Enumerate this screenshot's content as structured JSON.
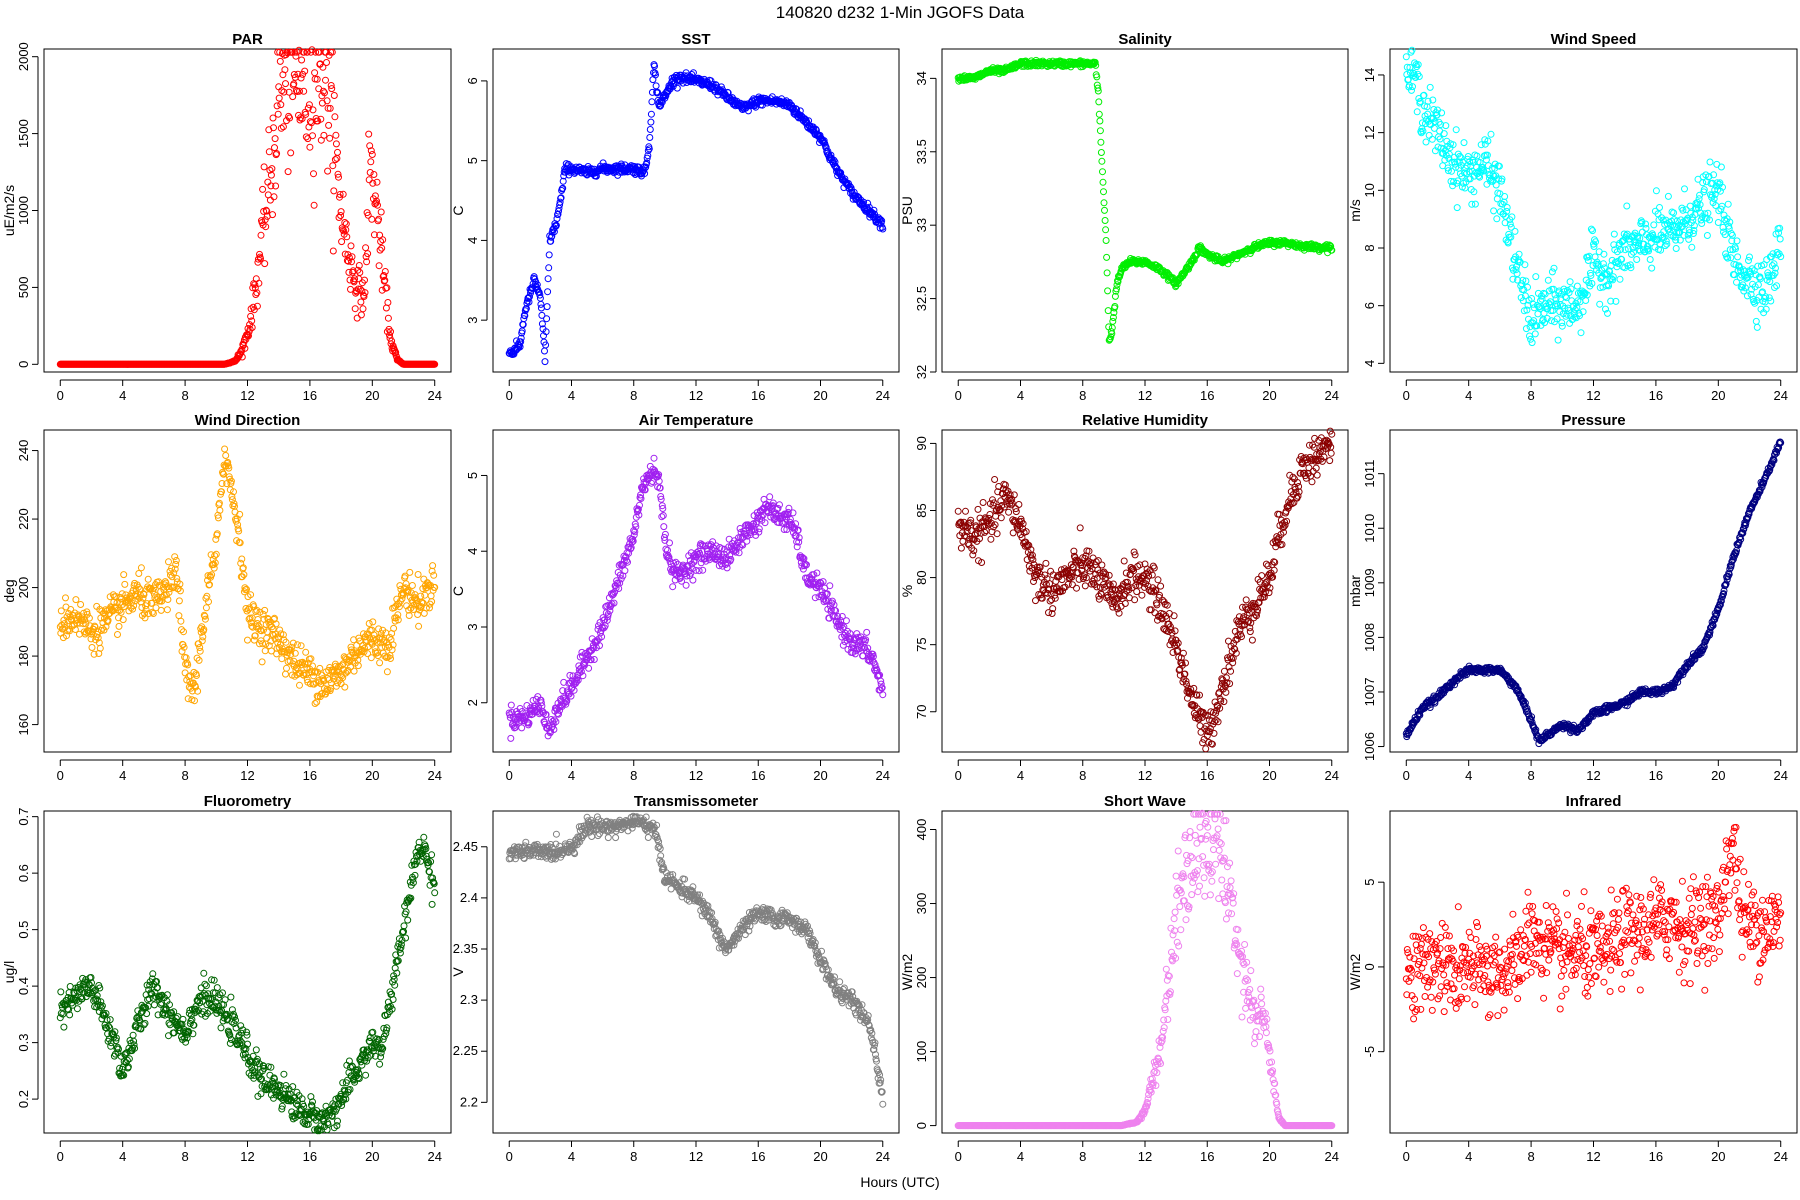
{
  "figure": {
    "title": "140820   d232   1-Min  JGOFS Data",
    "xlabel": "Hours (UTC)"
  },
  "chart_data": [
    {
      "type": "scatter",
      "title": "PAR",
      "ylabel": "uE/m2/s",
      "color": "#ff0000",
      "xlim": [
        0,
        24
      ],
      "ylim": [
        -50,
        2050
      ],
      "xticks": [
        0,
        4,
        8,
        12,
        16,
        20,
        24
      ],
      "yticks": [
        0,
        500,
        1000,
        1500,
        2000
      ],
      "ytick_rotate": true,
      "series": [
        {
          "x": [
            0,
            10.5,
            11.2,
            11.6,
            12.0,
            12.3,
            12.6,
            12.9,
            13.2,
            13.5,
            13.8,
            14.0,
            14.5,
            15.0,
            15.5,
            16.0,
            16.5,
            17.0,
            17.5,
            18.0,
            18.5,
            19.0,
            19.5,
            19.8,
            20.0,
            20.3,
            20.6,
            20.9,
            21.2,
            21.6,
            22.0,
            24
          ],
          "y": [
            0,
            0,
            20,
            80,
            200,
            350,
            550,
            800,
            1000,
            1250,
            1500,
            1780,
            1800,
            1820,
            1840,
            1800,
            1850,
            1900,
            1500,
            1000,
            700,
            500,
            450,
            1250,
            1200,
            1000,
            700,
            400,
            150,
            30,
            0,
            0
          ],
          "noise": 0.15
        }
      ]
    },
    {
      "type": "scatter",
      "title": "SST",
      "ylabel": "C",
      "color": "#0000ff",
      "xlim": [
        0,
        24
      ],
      "ylim": [
        2.35,
        6.4
      ],
      "xticks": [
        0,
        4,
        8,
        12,
        16,
        20,
        24
      ],
      "yticks": [
        3,
        4,
        5,
        6
      ],
      "ytick_rotate": true,
      "series": [
        {
          "x": [
            0,
            0.3,
            0.7,
            1.0,
            1.3,
            1.6,
            2.0,
            2.3,
            2.6,
            3.0,
            3.3,
            3.6,
            4.0,
            5.0,
            6.0,
            7.0,
            8.0,
            8.7,
            9.0,
            9.3,
            9.6,
            10.0,
            10.5,
            11.0,
            12.0,
            13.0,
            14.0,
            15.0,
            16.0,
            17.0,
            18.0,
            19.0,
            20.0,
            21.0,
            22.0,
            23.0,
            24.0
          ],
          "y": [
            2.6,
            2.6,
            2.7,
            3.1,
            3.3,
            3.5,
            3.3,
            2.5,
            4.0,
            4.2,
            4.5,
            4.9,
            4.9,
            4.85,
            4.9,
            4.9,
            4.9,
            4.85,
            5.2,
            6.2,
            5.7,
            5.8,
            6.0,
            6.05,
            6.0,
            5.95,
            5.8,
            5.65,
            5.75,
            5.75,
            5.7,
            5.5,
            5.3,
            4.9,
            4.6,
            4.4,
            4.2
          ],
          "noise": 0.03
        }
      ]
    },
    {
      "type": "scatter",
      "title": "Salinity",
      "ylabel": "PSU",
      "color": "#00ee00",
      "xlim": [
        0,
        24
      ],
      "ylim": [
        32.0,
        34.2
      ],
      "xticks": [
        0,
        4,
        8,
        12,
        16,
        20,
        24
      ],
      "yticks": [
        32.0,
        32.5,
        33.0,
        33.5,
        34.0
      ],
      "ytick_rotate": true,
      "series": [
        {
          "x": [
            0,
            1.0,
            2.0,
            3.0,
            4.0,
            5.0,
            6.0,
            7.0,
            8.0,
            8.8,
            9.0,
            9.3,
            9.5,
            9.7,
            9.9,
            10.2,
            10.5,
            11.0,
            12.0,
            13.0,
            14.0,
            15.0,
            15.5,
            16.0,
            17.0,
            18.0,
            19.0,
            20.0,
            21.0,
            22.0,
            23.0,
            24.0
          ],
          "y": [
            34.0,
            34.0,
            34.05,
            34.05,
            34.1,
            34.1,
            34.1,
            34.1,
            34.1,
            34.1,
            33.9,
            33.3,
            32.9,
            32.2,
            32.3,
            32.6,
            32.7,
            32.75,
            32.75,
            32.7,
            32.6,
            32.75,
            32.85,
            32.8,
            32.75,
            32.8,
            32.85,
            32.88,
            32.88,
            32.86,
            32.85,
            32.85
          ],
          "noise": 0.01
        }
      ]
    },
    {
      "type": "scatter",
      "title": "Wind Speed",
      "ylabel": "m/s",
      "color": "#00ffff",
      "xlim": [
        0,
        24
      ],
      "ylim": [
        3.7,
        14.9
      ],
      "xticks": [
        0,
        4,
        8,
        12,
        16,
        20,
        24
      ],
      "yticks": [
        4,
        6,
        8,
        10,
        12,
        14
      ],
      "ytick_rotate": true,
      "series": [
        {
          "x": [
            0,
            0.5,
            1.0,
            2.0,
            3.0,
            4.0,
            5.0,
            6.0,
            7.0,
            8.0,
            9.0,
            10.0,
            11.0,
            12.0,
            13.0,
            14.0,
            15.0,
            16.0,
            17.0,
            18.0,
            19.0,
            20.0,
            21.0,
            22.0,
            23.0,
            24.0
          ],
          "y": [
            14,
            14,
            13,
            12,
            11,
            10.5,
            11,
            10,
            7.5,
            5.5,
            6,
            6,
            6,
            7.5,
            7,
            8,
            8,
            8.5,
            8.5,
            9,
            9.5,
            10,
            7.5,
            7,
            6.5,
            8
          ],
          "noise": 0.5
        }
      ]
    },
    {
      "type": "scatter",
      "title": "Wind Direction",
      "ylabel": "deg",
      "color": "#ffa500",
      "xlim": [
        0,
        24
      ],
      "ylim": [
        152,
        246
      ],
      "xticks": [
        0,
        4,
        8,
        12,
        16,
        20,
        24
      ],
      "yticks": [
        160,
        180,
        200,
        220,
        240
      ],
      "ytick_rotate": true,
      "series": [
        {
          "x": [
            0,
            1.0,
            2.0,
            3.0,
            4.0,
            5.0,
            6.0,
            7.0,
            7.5,
            8.0,
            8.3,
            8.6,
            9.0,
            9.5,
            10.0,
            10.5,
            11.0,
            11.5,
            12.0,
            13.0,
            14.0,
            15.0,
            16.0,
            17.0,
            18.0,
            19.0,
            20.0,
            21.0,
            22.0,
            23.0,
            24.0
          ],
          "y": [
            190,
            192,
            187,
            190,
            195,
            198,
            195,
            200,
            205,
            175,
            172,
            170,
            185,
            200,
            210,
            240,
            228,
            215,
            192,
            188,
            185,
            178,
            175,
            172,
            175,
            182,
            185,
            183,
            200,
            195,
            202
          ],
          "noise": 3
        }
      ]
    },
    {
      "type": "scatter",
      "title": "Air Temperature",
      "ylabel": "C",
      "color": "#a020f0",
      "xlim": [
        0,
        24
      ],
      "ylim": [
        1.35,
        5.6
      ],
      "xticks": [
        0,
        4,
        8,
        12,
        16,
        20,
        24
      ],
      "yticks": [
        2,
        3,
        4,
        5
      ],
      "ytick_rotate": true,
      "series": [
        {
          "x": [
            0,
            1.0,
            2.0,
            2.5,
            3.0,
            4.0,
            5.0,
            6.0,
            7.0,
            8.0,
            8.5,
            9.0,
            9.5,
            10.0,
            10.5,
            11.0,
            12.0,
            13.0,
            14.0,
            15.0,
            16.0,
            16.5,
            17.0,
            18.0,
            18.5,
            19.0,
            20.0,
            21.0,
            22.0,
            23.0,
            23.5,
            24.0
          ],
          "y": [
            1.8,
            1.8,
            2.0,
            1.6,
            1.9,
            2.2,
            2.6,
            3.0,
            3.6,
            4.2,
            4.8,
            5.0,
            5.1,
            4.2,
            3.7,
            3.7,
            3.9,
            4.0,
            3.9,
            4.2,
            4.4,
            4.6,
            4.5,
            4.4,
            4.2,
            3.7,
            3.5,
            3.1,
            2.8,
            2.7,
            2.5,
            2.1
          ],
          "noise": 0.08
        }
      ]
    },
    {
      "type": "scatter",
      "title": "Relative Humidity",
      "ylabel": "%",
      "color": "#8b0000",
      "xlim": [
        0,
        24
      ],
      "ylim": [
        67,
        91
      ],
      "xticks": [
        0,
        4,
        8,
        12,
        16,
        20,
        24
      ],
      "yticks": [
        70,
        75,
        80,
        85,
        90
      ],
      "ytick_rotate": true,
      "series": [
        {
          "x": [
            0,
            1.0,
            2.0,
            3.0,
            4.0,
            5.0,
            6.0,
            7.0,
            8.0,
            9.0,
            10.0,
            11.0,
            12.0,
            13.0,
            14.0,
            15.0,
            16.0,
            17.0,
            18.0,
            19.0,
            20.0,
            21.0,
            22.0,
            23.0,
            24.0
          ],
          "y": [
            84,
            83,
            84,
            86,
            84,
            80,
            79,
            80,
            81,
            80,
            78,
            80,
            80,
            78,
            75,
            71,
            68,
            72,
            76,
            78,
            80,
            85,
            88,
            89,
            90
          ],
          "noise": 0.8
        }
      ]
    },
    {
      "type": "scatter",
      "title": "Pressure",
      "ylabel": "mbar",
      "color": "#000080",
      "xlim": [
        0,
        24
      ],
      "ylim": [
        1005.9,
        1011.8
      ],
      "xticks": [
        0,
        4,
        8,
        12,
        16,
        20,
        24
      ],
      "yticks": [
        1006,
        1007,
        1008,
        1009,
        1010,
        1011
      ],
      "ytick_rotate": true,
      "series": [
        {
          "x": [
            0,
            1.0,
            2.0,
            3.0,
            4.0,
            5.0,
            6.0,
            7.0,
            8.0,
            8.5,
            9.0,
            10.0,
            11.0,
            12.0,
            13.0,
            14.0,
            15.0,
            16.0,
            17.0,
            18.0,
            19.0,
            20.0,
            21.0,
            22.0,
            23.0,
            24.0
          ],
          "y": [
            1006.2,
            1006.7,
            1006.9,
            1007.2,
            1007.4,
            1007.4,
            1007.4,
            1007.1,
            1006.5,
            1006.1,
            1006.2,
            1006.4,
            1006.3,
            1006.6,
            1006.7,
            1006.8,
            1007.0,
            1007.0,
            1007.1,
            1007.5,
            1007.8,
            1008.5,
            1009.5,
            1010.3,
            1010.9,
            1011.6
          ],
          "noise": 0.03
        }
      ]
    },
    {
      "type": "scatter",
      "title": "Fluorometry",
      "ylabel": "ug/l",
      "color": "#006400",
      "xlim": [
        0,
        24
      ],
      "ylim": [
        0.14,
        0.71
      ],
      "xticks": [
        0,
        4,
        8,
        12,
        16,
        20,
        24
      ],
      "yticks": [
        0.2,
        0.3,
        0.4,
        0.5,
        0.6,
        0.7
      ],
      "ytick_rotate": true,
      "series": [
        {
          "x": [
            0,
            1.0,
            2.0,
            3.0,
            3.5,
            4.0,
            5.0,
            6.0,
            7.0,
            8.0,
            9.0,
            10.0,
            11.0,
            12.0,
            13.0,
            14.0,
            15.0,
            16.0,
            17.0,
            18.0,
            19.0,
            20.0,
            20.5,
            21.0,
            22.0,
            23.0,
            23.5,
            24.0
          ],
          "y": [
            0.35,
            0.38,
            0.4,
            0.33,
            0.3,
            0.25,
            0.33,
            0.4,
            0.35,
            0.32,
            0.38,
            0.37,
            0.33,
            0.28,
            0.23,
            0.22,
            0.19,
            0.17,
            0.16,
            0.2,
            0.25,
            0.3,
            0.28,
            0.35,
            0.5,
            0.65,
            0.63,
            0.57
          ],
          "noise": 0.015
        }
      ]
    },
    {
      "type": "scatter",
      "title": "Transmissometer",
      "ylabel": "V",
      "color": "#808080",
      "xlim": [
        0,
        24
      ],
      "ylim": [
        2.17,
        2.485
      ],
      "xticks": [
        0,
        4,
        8,
        12,
        16,
        20,
        24
      ],
      "yticks": [
        2.2,
        2.25,
        2.3,
        2.35,
        2.4,
        2.45
      ],
      "ytick_rotate": false,
      "series": [
        {
          "x": [
            0,
            1.0,
            2.0,
            3.0,
            4.0,
            5.0,
            6.0,
            7.0,
            8.0,
            9.0,
            9.5,
            10.0,
            11.0,
            12.0,
            13.0,
            13.5,
            14.0,
            15.0,
            16.0,
            17.0,
            18.0,
            19.0,
            20.0,
            21.0,
            22.0,
            23.0,
            23.5,
            24.0
          ],
          "y": [
            2.445,
            2.445,
            2.445,
            2.445,
            2.45,
            2.47,
            2.47,
            2.47,
            2.475,
            2.47,
            2.46,
            2.42,
            2.41,
            2.4,
            2.38,
            2.36,
            2.35,
            2.37,
            2.385,
            2.38,
            2.38,
            2.37,
            2.34,
            2.31,
            2.3,
            2.28,
            2.25,
            2.2
          ],
          "noise": 0.004
        }
      ]
    },
    {
      "type": "scatter",
      "title": "Short Wave",
      "ylabel": "W/m2",
      "color": "#ee82ee",
      "xlim": [
        0,
        24
      ],
      "ylim": [
        -10,
        425
      ],
      "xticks": [
        0,
        4,
        8,
        12,
        16,
        20,
        24
      ],
      "yticks": [
        0,
        100,
        200,
        300,
        400
      ],
      "ytick_rotate": true,
      "series": [
        {
          "x": [
            0,
            10.5,
            11.5,
            12.0,
            12.3,
            12.6,
            13.0,
            13.5,
            14.0,
            14.5,
            15.0,
            15.5,
            16.0,
            16.5,
            17.0,
            17.5,
            18.0,
            18.5,
            19.0,
            19.3,
            19.6,
            20.0,
            20.3,
            20.6,
            21.0,
            22.0,
            24
          ],
          "y": [
            0,
            0,
            5,
            20,
            50,
            70,
            100,
            200,
            280,
            340,
            370,
            380,
            390,
            400,
            360,
            300,
            250,
            200,
            150,
            150,
            150,
            100,
            50,
            10,
            0,
            0,
            0
          ],
          "noise": 0.12
        }
      ]
    },
    {
      "type": "scatter",
      "title": "Infrared",
      "ylabel": "W/m2",
      "color": "#ff0000",
      "xlim": [
        0,
        24
      ],
      "ylim": [
        -9.8,
        9.2
      ],
      "xticks": [
        0,
        4,
        8,
        12,
        16,
        20,
        24
      ],
      "yticks": [
        -5,
        0,
        5
      ],
      "ytick_rotate": true,
      "series": [
        {
          "x": [
            0,
            1.0,
            2.0,
            3.0,
            4.0,
            5.0,
            6.0,
            7.0,
            8.0,
            9.0,
            10.0,
            11.0,
            12.0,
            13.0,
            14.0,
            15.0,
            16.0,
            17.0,
            18.0,
            19.0,
            20.0,
            20.5,
            21.0,
            21.5,
            22.0,
            23.0,
            24.0
          ],
          "y": [
            -0.3,
            -0.2,
            0.5,
            -0.5,
            -0.2,
            -0.3,
            -0.2,
            0.0,
            2.0,
            1.0,
            0.5,
            1.0,
            0.5,
            1.0,
            2.0,
            2.0,
            2.5,
            3.0,
            2.0,
            3.0,
            2.5,
            6.0,
            7.0,
            3.0,
            2.5,
            2.5,
            2.5
          ],
          "noise": 1.3
        }
      ]
    }
  ]
}
